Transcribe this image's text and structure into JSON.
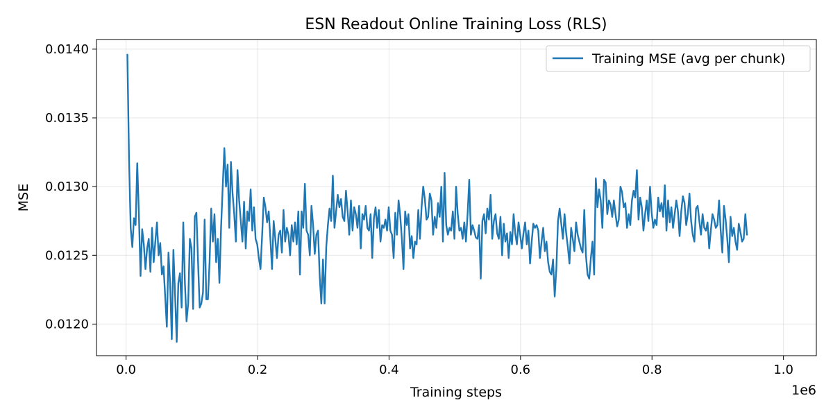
{
  "chart_data": {
    "type": "line",
    "title": "ESN Readout Online Training Loss (RLS)",
    "xlabel": "Training steps",
    "ylabel": "MSE",
    "x_offset_label": "1e6",
    "xlim": [
      -45000,
      1050000
    ],
    "ylim": [
      0.01177,
      0.01407
    ],
    "xticks": [
      {
        "value": 0,
        "label": "0.0"
      },
      {
        "value": 200000,
        "label": "0.2"
      },
      {
        "value": 400000,
        "label": "0.4"
      },
      {
        "value": 600000,
        "label": "0.6"
      },
      {
        "value": 800000,
        "label": "0.8"
      },
      {
        "value": 1000000,
        "label": "1.0"
      }
    ],
    "yticks": [
      {
        "value": 0.012,
        "label": "0.0120"
      },
      {
        "value": 0.0125,
        "label": "0.0125"
      },
      {
        "value": 0.013,
        "label": "0.0130"
      },
      {
        "value": 0.0135,
        "label": "0.0135"
      },
      {
        "value": 0.014,
        "label": "0.0140"
      }
    ],
    "grid": true,
    "legend_position": "top-right",
    "series": [
      {
        "name": "Training MSE (avg per chunk)",
        "color": "#1f77b4",
        "x_start": 2000,
        "x_step": 2500,
        "values": [
          0.01396,
          0.0132,
          0.0127,
          0.01256,
          0.01277,
          0.01272,
          0.01317,
          0.0128,
          0.01235,
          0.01269,
          0.01258,
          0.0124,
          0.01255,
          0.01262,
          0.01238,
          0.0127,
          0.01245,
          0.0126,
          0.01274,
          0.0125,
          0.01259,
          0.01236,
          0.01242,
          0.0122,
          0.01198,
          0.01252,
          0.0123,
          0.01189,
          0.01254,
          0.01222,
          0.01187,
          0.0123,
          0.01237,
          0.01212,
          0.01274,
          0.0123,
          0.01202,
          0.01215,
          0.01262,
          0.01255,
          0.01211,
          0.01278,
          0.01281,
          0.01245,
          0.01212,
          0.01215,
          0.01223,
          0.01276,
          0.01218,
          0.01218,
          0.01245,
          0.01284,
          0.0126,
          0.0128,
          0.01245,
          0.01262,
          0.0123,
          0.0127,
          0.013,
          0.01328,
          0.013,
          0.01316,
          0.0127,
          0.01318,
          0.01295,
          0.0128,
          0.0126,
          0.01312,
          0.0129,
          0.01275,
          0.0126,
          0.01289,
          0.01255,
          0.01282,
          0.01275,
          0.01298,
          0.01268,
          0.01285,
          0.01262,
          0.01258,
          0.01248,
          0.0124,
          0.01265,
          0.01292,
          0.01285,
          0.01274,
          0.01282,
          0.01262,
          0.0124,
          0.01275,
          0.01262,
          0.01248,
          0.01265,
          0.01268,
          0.01252,
          0.01283,
          0.0126,
          0.0127,
          0.01265,
          0.0125,
          0.01272,
          0.0126,
          0.01274,
          0.01258,
          0.01282,
          0.01236,
          0.01282,
          0.0127,
          0.01302,
          0.01268,
          0.01265,
          0.0125,
          0.01286,
          0.01272,
          0.01251,
          0.01265,
          0.01268,
          0.01235,
          0.01215,
          0.01247,
          0.01215,
          0.01256,
          0.01272,
          0.01284,
          0.01275,
          0.01308,
          0.0127,
          0.01282,
          0.01294,
          0.01285,
          0.01291,
          0.01278,
          0.01275,
          0.01297,
          0.01282,
          0.01265,
          0.0129,
          0.01268,
          0.01285,
          0.0128,
          0.0127,
          0.01286,
          0.01255,
          0.0128,
          0.01276,
          0.01286,
          0.0127,
          0.01268,
          0.0128,
          0.01248,
          0.01277,
          0.01285,
          0.0127,
          0.01283,
          0.0126,
          0.01272,
          0.0127,
          0.01276,
          0.01268,
          0.01285,
          0.01268,
          0.01265,
          0.01248,
          0.01281,
          0.01265,
          0.0129,
          0.01279,
          0.01262,
          0.0124,
          0.01282,
          0.01272,
          0.0128,
          0.01255,
          0.01264,
          0.01248,
          0.0126,
          0.01258,
          0.01283,
          0.01262,
          0.01285,
          0.013,
          0.01291,
          0.01276,
          0.01278,
          0.01295,
          0.0129,
          0.01265,
          0.01278,
          0.0127,
          0.01288,
          0.01278,
          0.013,
          0.0126,
          0.0131,
          0.01272,
          0.01265,
          0.0127,
          0.01268,
          0.01282,
          0.01262,
          0.013,
          0.0128,
          0.01268,
          0.0127,
          0.01262,
          0.01274,
          0.0126,
          0.0128,
          0.01305,
          0.01265,
          0.01272,
          0.01268,
          0.01263,
          0.01262,
          0.01272,
          0.01233,
          0.01275,
          0.0128,
          0.01266,
          0.01284,
          0.01276,
          0.01294,
          0.01262,
          0.01275,
          0.0128,
          0.01266,
          0.01262,
          0.01278,
          0.0125,
          0.01273,
          0.0126,
          0.01266,
          0.01248,
          0.01267,
          0.01258,
          0.0128,
          0.01266,
          0.01258,
          0.01274,
          0.01265,
          0.01255,
          0.01266,
          0.01274,
          0.01258,
          0.01268,
          0.01244,
          0.0126,
          0.01273,
          0.0127,
          0.01272,
          0.01268,
          0.01248,
          0.0126,
          0.0127,
          0.01253,
          0.0126,
          0.01245,
          0.01238,
          0.01236,
          0.01247,
          0.0122,
          0.0124,
          0.01275,
          0.01284,
          0.01273,
          0.01262,
          0.0128,
          0.01266,
          0.01256,
          0.01244,
          0.0127,
          0.01262,
          0.01253,
          0.01274,
          0.01265,
          0.0126,
          0.01255,
          0.01252,
          0.01283,
          0.0125,
          0.01236,
          0.01233,
          0.01248,
          0.0126,
          0.01236,
          0.01306,
          0.01285,
          0.01298,
          0.0129,
          0.0127,
          0.01305,
          0.01303,
          0.0128,
          0.0129,
          0.01287,
          0.01278,
          0.0129,
          0.0128,
          0.01271,
          0.01276,
          0.013,
          0.01296,
          0.01285,
          0.01288,
          0.0127,
          0.0128,
          0.01272,
          0.0129,
          0.01297,
          0.01292,
          0.01312,
          0.01276,
          0.01292,
          0.01285,
          0.01268,
          0.0128,
          0.0129,
          0.01275,
          0.013,
          0.01281,
          0.0127,
          0.01276,
          0.01272,
          0.01292,
          0.01282,
          0.01288,
          0.01278,
          0.01301,
          0.01268,
          0.0129,
          0.01274,
          0.01285,
          0.0127,
          0.0128,
          0.0129,
          0.01282,
          0.01264,
          0.01282,
          0.01293,
          0.01288,
          0.01272,
          0.0128,
          0.01295,
          0.01275,
          0.01265,
          0.0126,
          0.01284,
          0.01286,
          0.01275,
          0.01265,
          0.0128,
          0.0127,
          0.01268,
          0.01274,
          0.01255,
          0.01268,
          0.0128,
          0.01276,
          0.0127,
          0.01272,
          0.0129,
          0.01268,
          0.01252,
          0.01286,
          0.01276,
          0.01262,
          0.01245,
          0.01278,
          0.01264,
          0.0127,
          0.0126,
          0.01254,
          0.01273,
          0.01267,
          0.0126,
          0.01262,
          0.0128,
          0.01265
        ]
      }
    ]
  }
}
